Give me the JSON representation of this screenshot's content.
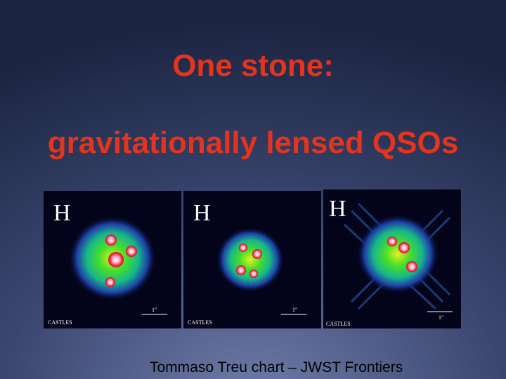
{
  "title": {
    "line1": "One stone:",
    "line2": "gravitationally lensed QSOs"
  },
  "panels": [
    {
      "band": "H",
      "scale": "1\"",
      "credit": "CASTLES"
    },
    {
      "band": "H",
      "scale": "1\"",
      "credit": "CASTLES"
    },
    {
      "band": "H",
      "scale": "1\"",
      "credit": "CASTLES"
    }
  ],
  "footer": "Tommaso Treu chart – JWST Frontiers"
}
